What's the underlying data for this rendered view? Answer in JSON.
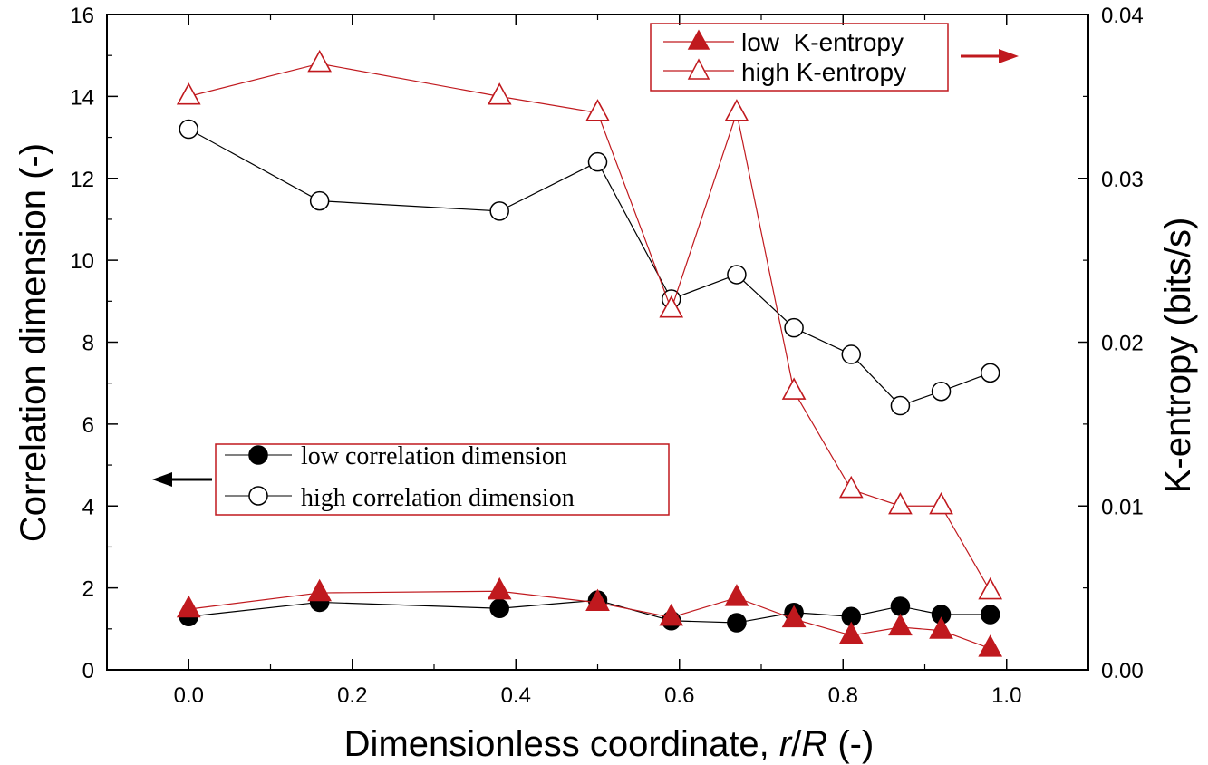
{
  "chart_data": {
    "type": "line",
    "xlabel_main": "Dimensionless coordinate, ",
    "xlabel_r": "r",
    "xlabel_slash": "/",
    "xlabel_R": "R",
    "xlabel_unit": " (-)",
    "ylabel_left": "Correlation dimension (-)",
    "ylabel_right": "K-entropy (bits/s)",
    "xlim": [
      -0.1,
      1.1
    ],
    "ylim_left": [
      0,
      16
    ],
    "ylim_right": [
      0,
      0.04
    ],
    "x_ticks": [
      "0.0",
      "0.2",
      "0.4",
      "0.6",
      "0.8",
      "1.0"
    ],
    "y_left_ticks": [
      "0",
      "2",
      "4",
      "6",
      "8",
      "10",
      "12",
      "14",
      "16"
    ],
    "y_right_ticks": [
      "0.00",
      "0.01",
      "0.02",
      "0.03",
      "0.04"
    ],
    "x": [
      0.0,
      0.16,
      0.38,
      0.5,
      0.59,
      0.67,
      0.74,
      0.81,
      0.87,
      0.92,
      0.98
    ],
    "series": [
      {
        "name": "low correlation dimension",
        "axis": "left",
        "marker": "filled-circle",
        "color": "#000000",
        "values": [
          1.3,
          1.65,
          1.5,
          1.7,
          1.2,
          1.15,
          1.4,
          1.3,
          1.55,
          1.35,
          1.35
        ]
      },
      {
        "name": "high correlation dimension",
        "axis": "left",
        "marker": "open-circle",
        "color": "#000000",
        "values": [
          13.2,
          11.45,
          11.2,
          12.4,
          9.05,
          9.65,
          8.35,
          7.7,
          6.45,
          6.8,
          7.25
        ]
      },
      {
        "name": "low  K-entropy",
        "axis": "right",
        "marker": "filled-triangle",
        "color": "#c0191e",
        "values": [
          0.0037,
          0.0047,
          0.0048,
          0.0041,
          0.0032,
          0.0044,
          0.0031,
          0.0021,
          0.0026,
          0.0024,
          0.0013
        ]
      },
      {
        "name": "high K-entropy",
        "axis": "right",
        "marker": "open-triangle",
        "color": "#c0191e",
        "values": [
          0.035,
          0.037,
          0.035,
          0.034,
          0.022,
          0.034,
          0.017,
          0.011,
          0.01,
          0.01,
          0.0048
        ]
      }
    ],
    "legend_upper": [
      "low  K-entropy",
      "high K-entropy"
    ],
    "legend_lower": [
      "low correlation dimension",
      "high correlation dimension"
    ],
    "legend_upper_placement": "top-right",
    "legend_lower_placement": "middle-left",
    "colors": {
      "k_entropy": "#c0191e",
      "correlation": "#000000"
    },
    "grid": false
  }
}
